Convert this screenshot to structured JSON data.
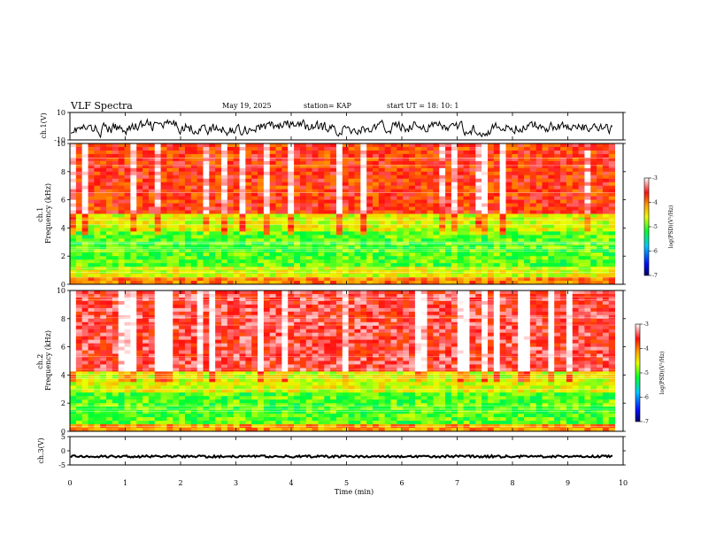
{
  "header": {
    "title": "VLF Spectra",
    "date": "May 19, 2025",
    "station": "station= KAP",
    "start": "start  UT  =   18: 10: 1"
  },
  "chart_data": [
    {
      "type": "line",
      "panel": "ch1-waveform",
      "ylabel": "ch.1(V)",
      "ylim": [
        -10,
        10
      ],
      "y_ticks": [
        "10",
        "-10"
      ],
      "xlim": [
        0,
        10
      ],
      "note_values": "noisy waveform, roughly -6 to +4 V around a mean near -1 V, data to ~9.8 min"
    },
    {
      "type": "heatmap",
      "panel": "ch1-spectrogram",
      "ylabel": "ch.1\nFrequency  (kHz)",
      "ylabel_lines": [
        "ch.1",
        "Frequency  (kHz)"
      ],
      "ylim": [
        0,
        10
      ],
      "y_ticks": [
        "0",
        "2",
        "4",
        "6",
        "8",
        "10"
      ],
      "xlim": [
        0,
        9.85
      ],
      "bands_khz": [
        {
          "from": 0,
          "to": 0.5,
          "level": -4.0
        },
        {
          "from": 0.5,
          "to": 1.2,
          "level": -4.6
        },
        {
          "from": 1.2,
          "to": 3.8,
          "level": -5.0
        },
        {
          "from": 3.8,
          "to": 4.9,
          "level": -4.6
        },
        {
          "from": 4.9,
          "to": 10,
          "level": -3.7
        }
      ],
      "colorbar": {
        "label": "log(PSD)(V²/Hz)",
        "range": [
          -7,
          -3
        ],
        "ticks": [
          "-3",
          "-4",
          "-5",
          "-6",
          "-7"
        ]
      }
    },
    {
      "type": "heatmap",
      "panel": "ch2-spectrogram",
      "ylabel": "ch.2\nFrequency  (kHz)",
      "ylabel_lines": [
        "ch.2",
        "Frequency  (kHz)"
      ],
      "ylim": [
        0,
        10
      ],
      "y_ticks": [
        "0",
        "2",
        "4",
        "6",
        "8",
        "10"
      ],
      "xlim": [
        0,
        9.85
      ],
      "bands_khz": [
        {
          "from": 0,
          "to": 0.6,
          "level": -4.1
        },
        {
          "from": 0.6,
          "to": 2.8,
          "level": -5.0
        },
        {
          "from": 2.8,
          "to": 4.2,
          "level": -4.6
        },
        {
          "from": 4.2,
          "to": 10,
          "level": -3.5
        }
      ],
      "colorbar": {
        "label": "log(PSD)(V²/Hz)",
        "range": [
          -7,
          -3
        ],
        "ticks": [
          "-3",
          "-4",
          "-5",
          "-6",
          "-7"
        ]
      }
    },
    {
      "type": "line",
      "panel": "ch3-waveform",
      "ylabel": "ch.3(V)",
      "ylim": [
        -5,
        5
      ],
      "y_ticks": [
        "5",
        "0",
        "-5"
      ],
      "xlim": [
        0,
        10
      ],
      "xlabel": "Time  (min)",
      "x_ticks": [
        "0",
        "1",
        "2",
        "3",
        "4",
        "5",
        "6",
        "7",
        "8",
        "9",
        "10"
      ],
      "note_values": "near-constant trace around -2 V"
    }
  ]
}
